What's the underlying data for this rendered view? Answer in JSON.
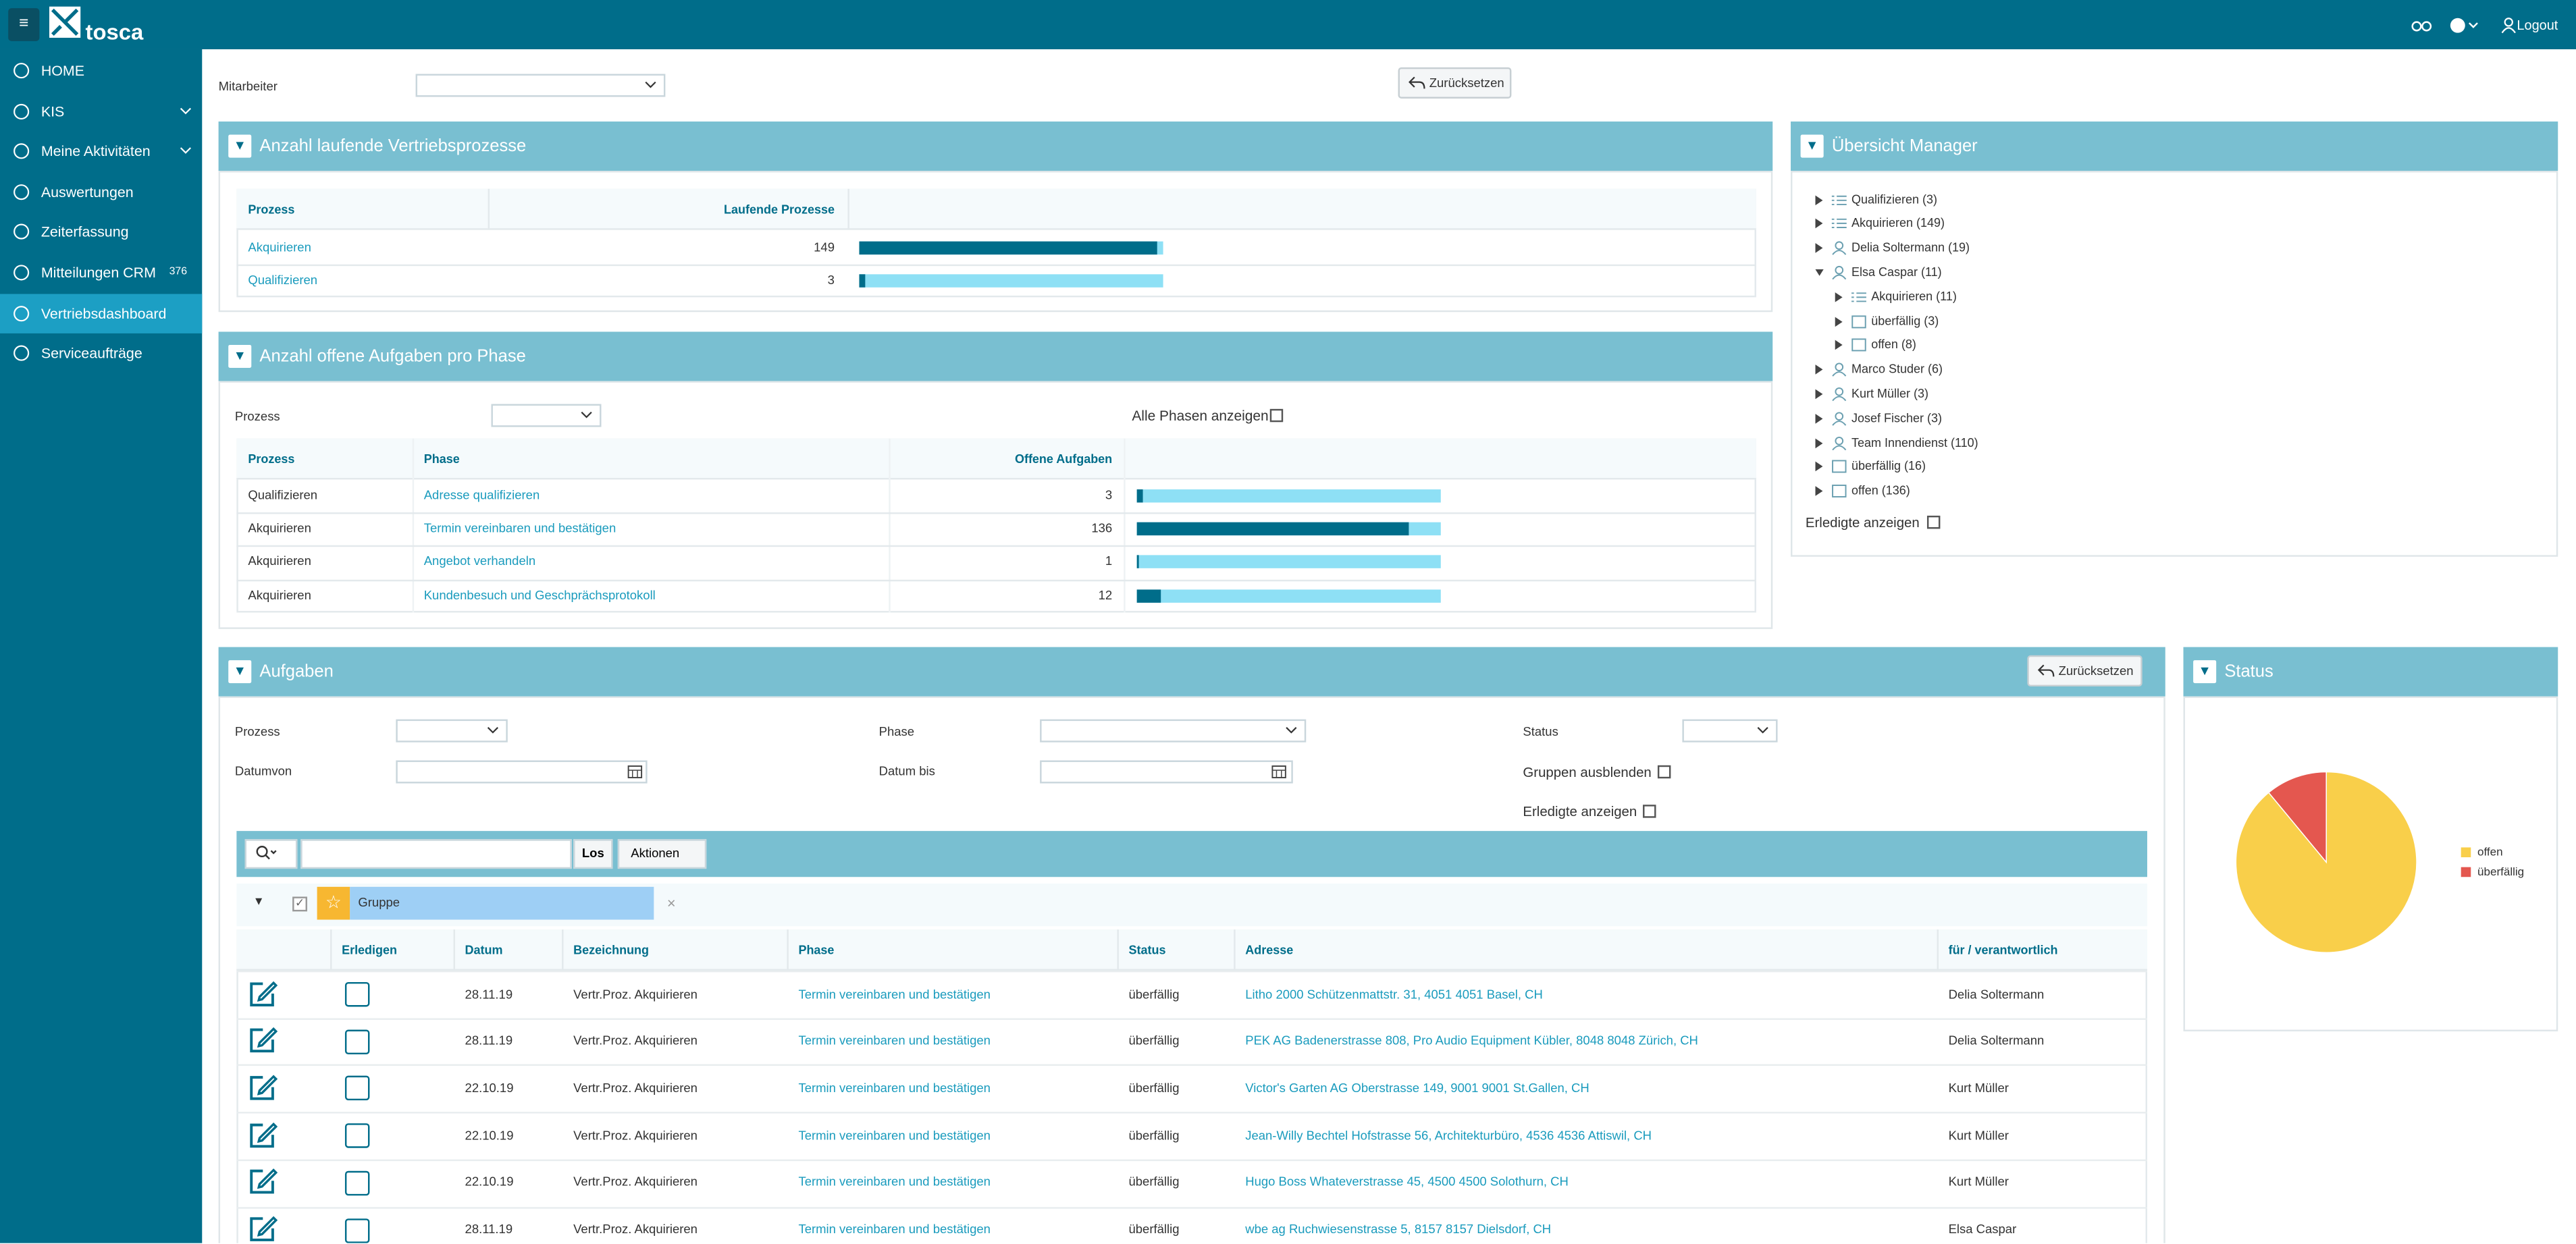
{
  "header": {
    "brand": "tosca",
    "logout": "Logout"
  },
  "sidebar": {
    "items": [
      {
        "label": "HOME"
      },
      {
        "label": "KIS",
        "submenu": true
      },
      {
        "label": "Meine Aktivitäten",
        "submenu": true
      },
      {
        "label": "Auswertungen"
      },
      {
        "label": "Zeiterfassung"
      },
      {
        "label": "Mitteilungen CRM",
        "badge": "376"
      },
      {
        "label": "Vertriebsdashboard",
        "active": true
      },
      {
        "label": "Serviceaufträge"
      }
    ]
  },
  "filter": {
    "label": "Mitarbeiter",
    "reset": "Zurücksetzen"
  },
  "processes": {
    "title": "Anzahl laufende Vertriebsprozesse",
    "columns": [
      "Prozess",
      "Laufende Prozesse"
    ],
    "rows": [
      {
        "name": "Akquirieren",
        "value": 149
      },
      {
        "name": "Qualifizieren",
        "value": 3
      }
    ]
  },
  "phases": {
    "title": "Anzahl offene Aufgaben pro Phase",
    "filter_label": "Prozess",
    "show_all": "Alle Phasen anzeigen",
    "columns": [
      "Prozess",
      "Phase",
      "Offene Aufgaben"
    ],
    "rows": [
      {
        "process": "Qualifizieren",
        "phase": "Adresse qualifizieren",
        "value": 3
      },
      {
        "process": "Akquirieren",
        "phase": "Termin vereinbaren und bestätigen",
        "value": 136
      },
      {
        "process": "Akquirieren",
        "phase": "Angebot verhandeln",
        "value": 1
      },
      {
        "process": "Akquirieren",
        "phase": "Kundenbesuch und Geschprächsprotokoll",
        "value": 12
      }
    ]
  },
  "manager": {
    "title": "Übersicht Manager",
    "nodes": [
      {
        "label": "Qualifizieren (3)",
        "level": 0,
        "icon": "list"
      },
      {
        "label": "Akquirieren (149)",
        "level": 0,
        "icon": "list"
      },
      {
        "label": "Delia Soltermann (19)",
        "level": 0,
        "icon": "person"
      },
      {
        "label": "Elsa Caspar (11)",
        "level": 0,
        "icon": "person",
        "expanded": true
      },
      {
        "label": "Akquirieren (11)",
        "level": 1,
        "icon": "list"
      },
      {
        "label": "überfällig (3)",
        "level": 1,
        "icon": "calendar"
      },
      {
        "label": "offen (8)",
        "level": 1,
        "icon": "calendar"
      },
      {
        "label": "Marco Studer (6)",
        "level": 0,
        "icon": "person"
      },
      {
        "label": "Kurt Müller (3)",
        "level": 0,
        "icon": "person"
      },
      {
        "label": "Josef Fischer (3)",
        "level": 0,
        "icon": "person"
      },
      {
        "label": "Team Innendienst (110)",
        "level": 0,
        "icon": "person"
      },
      {
        "label": "überfällig (16)",
        "level": 0,
        "icon": "calendar"
      },
      {
        "label": "offen (136)",
        "level": 0,
        "icon": "calendar"
      }
    ],
    "show_done": "Erledigte anzeigen"
  },
  "tasks": {
    "title": "Aufgaben",
    "reset": "Zurücksetzen",
    "filters": {
      "process": "Prozess",
      "phase": "Phase",
      "status": "Status",
      "date_from": "Datumvon",
      "date_to": "Datum bis",
      "hide_groups": "Gruppen ausblenden",
      "show_done": "Erledigte anzeigen"
    },
    "go": "Los",
    "actions": "Aktionen",
    "group": "Gruppe",
    "columns": [
      "Erledigen",
      "Datum",
      "Bezeichnung",
      "Phase",
      "Status",
      "Adresse",
      "für / verantwortlich"
    ],
    "rows": [
      [
        "28.11.19",
        "Vertr.Proz. Akquirieren",
        "Termin vereinbaren und bestätigen",
        "überfällig",
        "Litho 2000 Schützenmattstr. 31, 4051 4051 Basel, CH",
        "Delia Soltermann"
      ],
      [
        "28.11.19",
        "Vertr.Proz. Akquirieren",
        "Termin vereinbaren und bestätigen",
        "überfällig",
        "PEK AG Badenerstrasse 808, Pro Audio Equipment Kübler, 8048 8048 Zürich, CH",
        "Delia Soltermann"
      ],
      [
        "22.10.19",
        "Vertr.Proz. Akquirieren",
        "Termin vereinbaren und bestätigen",
        "überfällig",
        "Victor's Garten AG Oberstrasse 149, 9001 9001 St.Gallen, CH",
        "Kurt Müller"
      ],
      [
        "22.10.19",
        "Vertr.Proz. Akquirieren",
        "Termin vereinbaren und bestätigen",
        "überfällig",
        "Jean-Willy Bechtel Hofstrasse 56, Architekturbüro, 4536 4536 Attiswil, CH",
        "Kurt Müller"
      ],
      [
        "22.10.19",
        "Vertr.Proz. Akquirieren",
        "Termin vereinbaren und bestätigen",
        "überfällig",
        "Hugo Boss Whateverstrasse 45, 4500 4500 Solothurn, CH",
        "Kurt Müller"
      ],
      [
        "28.11.19",
        "Vertr.Proz. Akquirieren",
        "Termin vereinbaren und bestätigen",
        "überfällig",
        "wbe ag Ruchwiesenstrasse 5, 8157 8157 Dielsdorf, CH",
        "Elsa Caspar"
      ]
    ]
  },
  "chart_data": {
    "type": "pie",
    "title": "Status",
    "categories": [
      "offen",
      "überfällig"
    ],
    "values": [
      89,
      11
    ],
    "colors": [
      "#f9cf4a",
      "#e4574f"
    ]
  }
}
